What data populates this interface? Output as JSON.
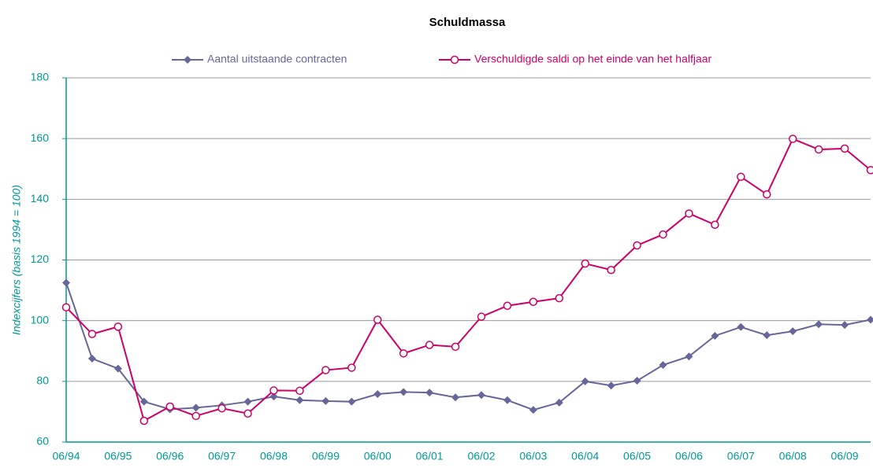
{
  "chart_data": {
    "type": "line",
    "title": "Schuldmassa",
    "ylabel": "Indexcijfers (basis 1994 = 100)",
    "categories": [
      "06/94",
      null,
      "06/95",
      null,
      "06/96",
      null,
      "06/97",
      null,
      "06/98",
      null,
      "06/99",
      null,
      "06/00",
      null,
      "06/01",
      null,
      "06/02",
      null,
      "06/03",
      null,
      "06/04",
      null,
      "06/05",
      null,
      "06/06",
      null,
      "06/07",
      null,
      "06/08",
      null,
      "06/09",
      null
    ],
    "series": [
      {
        "name": "Aantal uitstaande contracten",
        "color": "#666699",
        "marker": "diamond",
        "values": [
          112.5,
          87.5,
          84.2,
          73.3,
          70.8,
          71.3,
          72.1,
          73.3,
          75.0,
          73.8,
          73.5,
          73.3,
          75.8,
          76.5,
          76.3,
          74.7,
          75.5,
          73.8,
          70.6,
          73.0,
          80.0,
          78.6,
          80.2,
          85.4,
          88.2,
          95.0,
          97.9,
          95.2,
          96.5,
          98.8,
          98.6,
          100.3
        ]
      },
      {
        "name": "Verschuldigde saldi op het einde van het halfjaar",
        "color": "#cc0066",
        "marker": "circle",
        "values": [
          104.4,
          95.6,
          98.0,
          67.0,
          71.7,
          68.6,
          71.1,
          69.4,
          77.0,
          76.9,
          83.7,
          84.5,
          100.3,
          89.2,
          92.0,
          91.4,
          101.3,
          104.9,
          106.2,
          107.4,
          118.8,
          116.7,
          124.8,
          128.4,
          135.3,
          131.6,
          147.4,
          141.6,
          159.9,
          156.4,
          156.7,
          149.6
        ]
      }
    ],
    "ylim": [
      60,
      180
    ],
    "yticks": [
      60,
      80,
      100,
      120,
      140,
      160,
      180
    ],
    "grid": true,
    "legend": "top",
    "axis_color": "#009999"
  }
}
